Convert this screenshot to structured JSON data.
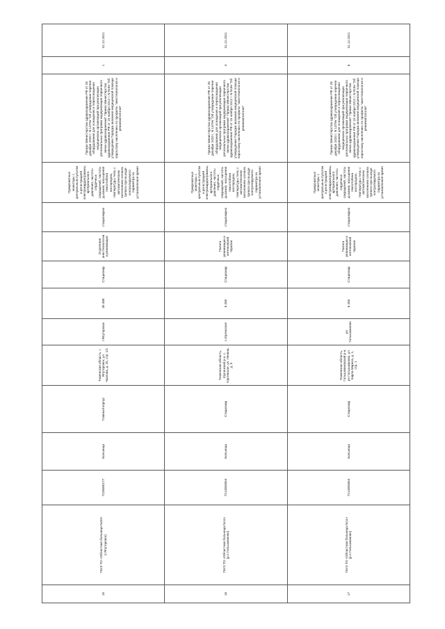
{
  "rows": [
    {
      "num": "15",
      "name": "ГБУЗ ТО «Областная больница №20» (г.Ялуторовск)",
      "inn": "7228000177",
      "org_type": "Больница",
      "building": "Главный корпус",
      "address": "Тюменская область, г. Ялуторовск, ул. Чкалова, д. 25, стр. 1/1",
      "town": "г.Ялуторовск",
      "number": "35 488",
      "building_type": "Стационар",
      "department": "Отделение анестезиологии и реанимации",
      "care_form": "стационарно",
      "equipment": "Прикроватные мониторы с центральным пультом и регистрацией электрокардиограммы, артериального давления, частоты сердечных сокращений, частоты дыхания, насыщения гемоглобина кислородом, температуры тела; с автоматическим включением сигнала тревоги при выходе контролируемого параметра за установленное время",
      "order": "Приказ Министерства здравоохранения РФ от 28 декабря 2020 г. N 1379н \"Об утверждении перечня оборудования для оснащения и переоснащения медицинских организаций при реализации региональных программ модернизации первичного звена здравоохранения\" Приказ Министерства здравоохранения РФ от 15 ноября 2012 г. N 919н \"Об утверждении Порядка оказания медицинской помощи взрослому населению по профилю \"анестезиология и реаниматология\"",
      "quantity": "1",
      "date": "31.12.2021"
    },
    {
      "num": "16",
      "name": "ГБУЗ ТО «Областная больница №11» (р.п.Голышманово)",
      "inn": "7214004654",
      "org_type": "Больница",
      "building": "Стационар",
      "address": "Тюменская область, Юргинский р-н, с. Юргинское, ул. Ленина, д. 5",
      "town": "с.Юргинское",
      "number": "8 285",
      "building_type": "Стационар",
      "department": "Палата реанимации и интенсивной терапии",
      "care_form": "стационарно",
      "equipment": "Прикроватные мониторы с центральным пультом и регистрацией электрокардиограммы, артериального давления, частоты сердечных сокращений, частоты дыхания, насыщения гемоглобина кислородом, температуры тела; с автоматическим включением сигнала тревоги при выходе контролируемого параметра за установленное время",
      "order": "Приказ Министерства здравоохранения РФ от 28 декабря 2020 г. N 1379н \"Об утверждении перечня оборудования для оснащения и переоснащения медицинских организаций при реализации региональных программ модернизации первичного звена здравоохранения\" Приказ Министерства здравоохранения РФ от 15 ноября 2012 г. N 919н \"Об утверждении Порядка оказания медицинской помощи взрослому населению по профилю \"анестезиология и реаниматология\"",
      "quantity": "4",
      "date": "31.12.2021"
    },
    {
      "num": "17",
      "name": "ГБУЗ ТО «Областная больница №11» (р.п.Голышманово)",
      "inn": "7214004654",
      "org_type": "Больница",
      "building": "Стационар",
      "address": "Тюменская область, Голышмановский р-н, рп Голышманово, ул. Карла Маркса, д. 1, стр. 1",
      "town": "рп Голышманово",
      "number": "8 285",
      "building_type": "Стационар",
      "department": "Палата реанимации и интенсивной терапии",
      "care_form": "стационарно",
      "equipment": "Прикроватные мониторы с центральным пультом и регистрацией электрокардиограммы, артериального давления, частоты сердечных сокращений, частоты дыхания, насыщения гемоглобина кислородом, температуры тела; с автоматическим включением сигнала тревоги при выходе контролируемого параметра за установленное время",
      "order": "Приказ Министерства здравоохранения РФ от 28 декабря 2020 г. N 1379н \"Об утверждении перечня оборудования для оснащения и переоснащения медицинских организаций при реализации региональных программ модернизации первичного звена здравоохранения\" Приказ Министерства здравоохранения РФ от 15 ноября 2012 г. N 919н \"Об утверждении Порядка оказания медицинской помощи взрослому населению по профилю \"анестезиология и реаниматология\"",
      "quantity": "6",
      "date": "31.12.2021"
    }
  ]
}
